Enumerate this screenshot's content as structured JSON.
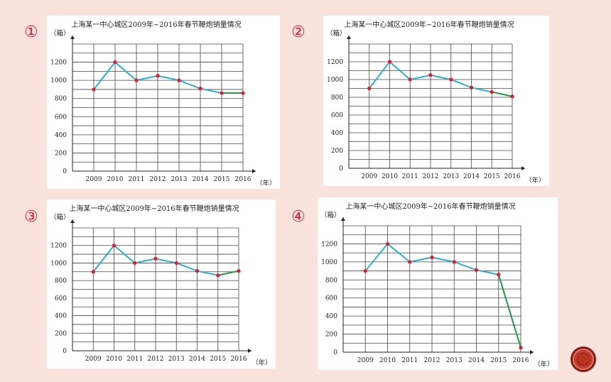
{
  "panels": [
    {
      "label": "①"
    },
    {
      "label": "②"
    },
    {
      "label": "③"
    },
    {
      "label": "④"
    }
  ],
  "common": {
    "title": "上海某一中心城区2009年~2016年春节鞭炮销量情况",
    "y_unit": "（箱）",
    "x_unit": "（年）"
  },
  "chart_data": [
    {
      "type": "line",
      "title": "上海某一中心城区2009年~2016年春节鞭炮销量情况",
      "xlabel": "（年）",
      "ylabel": "（箱）",
      "categories": [
        "2009",
        "2010",
        "2011",
        "2012",
        "2013",
        "2014",
        "2015",
        "2016"
      ],
      "yticks": [
        0,
        200,
        400,
        600,
        800,
        1000,
        1200
      ],
      "ylim": [
        0,
        1400
      ],
      "values": [
        900,
        1200,
        1000,
        1050,
        1000,
        910,
        860,
        860
      ],
      "highlight_last_segment": true,
      "colors": {
        "line": "#2ab0d8",
        "last_segment": "#1a9a4a",
        "point": "#e8182a"
      }
    },
    {
      "type": "line",
      "title": "上海某一中心城区2009年~2016年春节鞭炮销量情况",
      "xlabel": "（年）",
      "ylabel": "（箱）",
      "categories": [
        "2009",
        "2010",
        "2011",
        "2012",
        "2013",
        "2014",
        "2015",
        "2016"
      ],
      "yticks": [
        0,
        200,
        400,
        600,
        800,
        1000,
        1200
      ],
      "ylim": [
        0,
        1400
      ],
      "values": [
        900,
        1200,
        1000,
        1050,
        1000,
        910,
        860,
        810
      ],
      "highlight_last_segment": true,
      "colors": {
        "line": "#2ab0d8",
        "last_segment": "#1a9a4a",
        "point": "#e8182a"
      }
    },
    {
      "type": "line",
      "title": "上海某一中心城区2009年~2016年春节鞭炮销量情况",
      "xlabel": "（年）",
      "ylabel": "（箱）",
      "categories": [
        "2009",
        "2010",
        "2011",
        "2012",
        "2013",
        "2014",
        "2015",
        "2016"
      ],
      "yticks": [
        0,
        200,
        400,
        600,
        800,
        1000,
        1200
      ],
      "ylim": [
        0,
        1400
      ],
      "values": [
        900,
        1200,
        1000,
        1050,
        1000,
        910,
        860,
        910
      ],
      "highlight_last_segment": true,
      "colors": {
        "line": "#2ab0d8",
        "last_segment": "#1a9a4a",
        "point": "#e8182a"
      }
    },
    {
      "type": "line",
      "title": "上海某一中心城区2009年~2016年春节鞭炮销量情况",
      "xlabel": "（年）",
      "ylabel": "（箱）",
      "categories": [
        "2009",
        "2010",
        "2011",
        "2012",
        "2013",
        "2014",
        "2015",
        "2016"
      ],
      "yticks": [
        0,
        200,
        400,
        600,
        800,
        1000,
        1200
      ],
      "ylim": [
        0,
        1400
      ],
      "values": [
        900,
        1200,
        1000,
        1050,
        1000,
        910,
        860,
        50
      ],
      "highlight_last_segment": true,
      "colors": {
        "line": "#2ab0d8",
        "last_segment": "#1a9a4a",
        "point": "#e8182a"
      }
    }
  ]
}
